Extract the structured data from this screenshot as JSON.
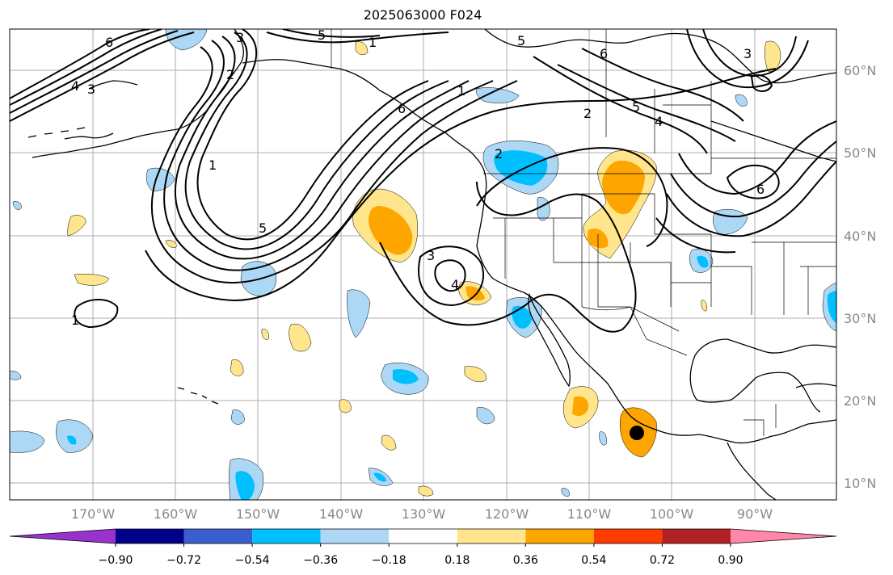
{
  "title": "2025063000 F024",
  "lon_labels": [
    "170°W",
    "160°W",
    "150°W",
    "140°W",
    "130°W",
    "120°W",
    "110°W",
    "100°W",
    "90°W"
  ],
  "lat_labels": [
    "60°N",
    "50°N",
    "40°N",
    "30°N",
    "20°N",
    "10°N"
  ],
  "colorbar": {
    "ticks": [
      "−0.90",
      "−0.72",
      "−0.54",
      "−0.36",
      "−0.18",
      "0.18",
      "0.36",
      "0.54",
      "0.72",
      "0.90"
    ],
    "colors": [
      "#9932cc",
      "#00008b",
      "#3a5fcd",
      "#00bfff",
      "#add8f5",
      "#ffffff",
      "#ffe68c",
      "#ffa500",
      "#ff3c00",
      "#b22222",
      "#ff88aa"
    ]
  },
  "contour_labels": [
    "6",
    "3",
    "5",
    "1",
    "4",
    "3",
    "2",
    "1",
    "5",
    "4",
    "6",
    "5",
    "2",
    "1",
    "3",
    "4",
    "1",
    "5",
    "3",
    "6",
    "2",
    "6"
  ],
  "marker": "storm-center"
}
